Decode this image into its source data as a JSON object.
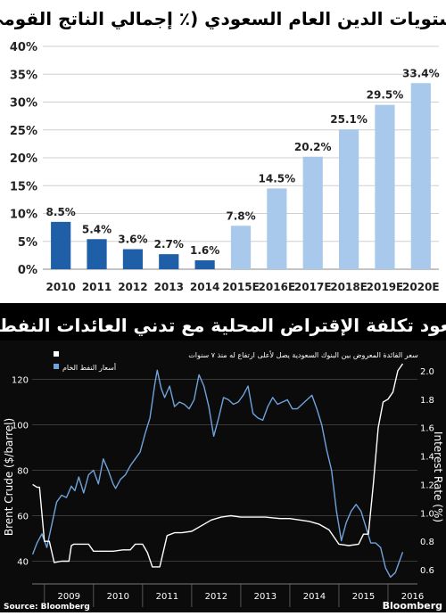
{
  "chart_data": [
    {
      "type": "bar",
      "title": "مستويات الدين العام السعودي (٪ إجمالي الناتج القومي)",
      "categories": [
        "2010",
        "2011",
        "2012",
        "2013",
        "2014",
        "2015E",
        "2016E",
        "2017E",
        "2018E",
        "2019E",
        "2020E"
      ],
      "values": [
        8.5,
        5.4,
        3.6,
        2.7,
        1.6,
        7.8,
        14.5,
        20.2,
        25.1,
        29.5,
        33.4
      ],
      "data_labels": [
        "8.5%",
        "5.4%",
        "3.6%",
        "2.7%",
        "1.6%",
        "7.8%",
        "14.5%",
        "20.2%",
        "25.1%",
        "29.5%",
        "33.4%"
      ],
      "y_ticks": [
        "0%",
        "5%",
        "10%",
        "15%",
        "20%",
        "25%",
        "30%",
        "35%",
        "40%"
      ],
      "ylim": [
        0,
        40
      ],
      "grid": true,
      "colors": {
        "actual": "#1f5fa8",
        "estimate": "#a9c9ec"
      }
    },
    {
      "type": "line",
      "title": "صعود تكلفة الإقتراض المحلية مع تدني العائدات النفطية",
      "x_ticks": [
        "2009",
        "2010",
        "2011",
        "2012",
        "2013",
        "2014",
        "2015",
        "2016"
      ],
      "xlim": [
        2008.75,
        2016.6
      ],
      "ylabel_left": "Brent Crude ($/barrel)",
      "ylabel_right": "Interest Rate (%)",
      "y_left_ticks": [
        "40",
        "60",
        "80",
        "100",
        "120"
      ],
      "y_left_lim": [
        30,
        130
      ],
      "y_right_ticks": [
        "0.6",
        "0.8",
        "1.0",
        "1.2",
        "1.4",
        "1.6",
        "1.8",
        "2.0"
      ],
      "y_right_lim": [
        0.5,
        2.1
      ],
      "legend": [
        {
          "name": "سعر الفائدة المعروض بين البنوك السعودية يصل لأعلى ارتفاع له منذ ٧ سنوات",
          "color": "#ffffff"
        },
        {
          "name": "أسعار النفط الخام",
          "color": "#6fa3dc"
        }
      ],
      "source": "Source: Bloomberg",
      "brand": "Bloomberg",
      "series": [
        {
          "name": "أسعار النفط الخام",
          "axis": "left",
          "color": "#6fa3dc",
          "x": [
            2008.76,
            2008.85,
            2008.95,
            2009.05,
            2009.15,
            2009.25,
            2009.35,
            2009.45,
            2009.55,
            2009.62,
            2009.7,
            2009.8,
            2009.9,
            2010.0,
            2010.1,
            2010.2,
            2010.3,
            2010.4,
            2010.45,
            2010.55,
            2010.65,
            2010.75,
            2010.85,
            2010.95,
            2011.05,
            2011.15,
            2011.25,
            2011.3,
            2011.38,
            2011.45,
            2011.55,
            2011.65,
            2011.75,
            2011.85,
            2011.95,
            2012.05,
            2012.15,
            2012.25,
            2012.35,
            2012.45,
            2012.55,
            2012.65,
            2012.75,
            2012.85,
            2012.95,
            2013.05,
            2013.15,
            2013.25,
            2013.35,
            2013.45,
            2013.55,
            2013.65,
            2013.75,
            2013.85,
            2013.95,
            2014.05,
            2014.15,
            2014.25,
            2014.35,
            2014.45,
            2014.55,
            2014.65,
            2014.75,
            2014.85,
            2014.95,
            2015.05,
            2015.15,
            2015.25,
            2015.35,
            2015.45,
            2015.55,
            2015.65,
            2015.75,
            2015.85,
            2015.95,
            2016.05,
            2016.15,
            2016.25,
            2016.3
          ],
          "y": [
            43,
            48,
            52,
            46,
            56,
            66,
            69,
            68,
            73,
            71,
            77,
            70,
            78,
            80,
            74,
            85,
            80,
            74,
            72,
            76,
            78,
            82,
            85,
            88,
            96,
            103,
            118,
            124,
            116,
            112,
            117,
            108,
            110,
            109,
            107,
            111,
            122,
            117,
            108,
            95,
            103,
            112,
            111,
            109,
            110,
            113,
            117,
            105,
            103,
            102,
            108,
            112,
            109,
            110,
            111,
            107,
            107,
            109,
            111,
            113,
            107,
            100,
            89,
            80,
            62,
            49,
            57,
            62,
            65,
            62,
            55,
            48,
            48,
            46,
            37,
            33,
            35,
            41,
            44
          ]
        },
        {
          "name": "سعر الفائدة المعروض بين البنوك السعودية",
          "axis": "right",
          "color": "#ffffff",
          "x": [
            2008.76,
            2008.85,
            2008.9,
            2009.0,
            2009.1,
            2009.2,
            2009.35,
            2009.5,
            2009.55,
            2009.6,
            2009.75,
            2009.9,
            2010.0,
            2010.2,
            2010.4,
            2010.6,
            2010.75,
            2010.85,
            2011.0,
            2011.1,
            2011.2,
            2011.35,
            2011.5,
            2011.65,
            2011.8,
            2012.0,
            2012.2,
            2012.4,
            2012.6,
            2012.8,
            2013.0,
            2013.2,
            2013.5,
            2013.8,
            2014.0,
            2014.2,
            2014.4,
            2014.6,
            2014.8,
            2015.0,
            2015.2,
            2015.4,
            2015.5,
            2015.6,
            2015.7,
            2015.8,
            2015.9,
            2016.0,
            2016.1,
            2016.2,
            2016.3
          ],
          "y": [
            1.2,
            1.18,
            1.18,
            0.8,
            0.8,
            0.65,
            0.66,
            0.66,
            0.77,
            0.78,
            0.78,
            0.78,
            0.73,
            0.73,
            0.73,
            0.74,
            0.74,
            0.78,
            0.78,
            0.72,
            0.62,
            0.62,
            0.84,
            0.86,
            0.86,
            0.87,
            0.91,
            0.95,
            0.97,
            0.98,
            0.97,
            0.97,
            0.97,
            0.96,
            0.96,
            0.95,
            0.94,
            0.92,
            0.88,
            0.78,
            0.77,
            0.78,
            0.85,
            0.85,
            1.2,
            1.6,
            1.78,
            1.8,
            1.85,
            2.0,
            2.05
          ]
        }
      ]
    }
  ]
}
